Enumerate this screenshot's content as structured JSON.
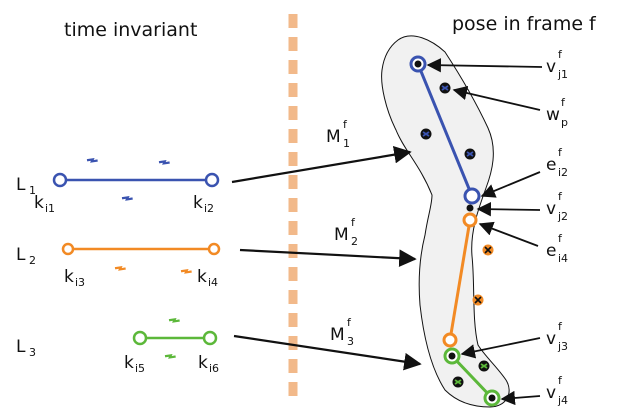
{
  "header": {
    "left": "time invariant",
    "right": "pose in frame f"
  },
  "limbs": [
    {
      "label": "L",
      "label_sub": "1",
      "key_a": "k",
      "key_a_sub": "i1",
      "key_b": "k",
      "key_b_sub": "i2",
      "map": "M",
      "map_sub": "1",
      "map_sup": "f",
      "color": "#3a53b0"
    },
    {
      "label": "L",
      "label_sub": "2",
      "key_a": "k",
      "key_a_sub": "i3",
      "key_b": "k",
      "key_b_sub": "i4",
      "map": "M",
      "map_sub": "2",
      "map_sup": "f",
      "color": "#f28a24"
    },
    {
      "label": "L",
      "label_sub": "3",
      "key_a": "k",
      "key_a_sub": "i5",
      "key_b": "k",
      "key_b_sub": "i6",
      "map": "M",
      "map_sub": "3",
      "map_sup": "f",
      "color": "#5cb83a"
    }
  ],
  "right_labels": {
    "vj1": {
      "base": "v",
      "sub": "j1",
      "sup": "f"
    },
    "wp": {
      "base": "w",
      "sub": "p",
      "sup": "f"
    },
    "ei2": {
      "base": "e",
      "sub": "i2",
      "sup": "f"
    },
    "vj2": {
      "base": "v",
      "sub": "j2",
      "sup": "f"
    },
    "ei4": {
      "base": "e",
      "sub": "i4",
      "sup": "f"
    },
    "vj3": {
      "base": "v",
      "sub": "j3",
      "sup": "f"
    },
    "vj4": {
      "base": "v",
      "sub": "j4",
      "sup": "f"
    }
  },
  "colors": {
    "blue": "#3a53b0",
    "orange": "#f28a24",
    "green": "#5cb83a",
    "divider": "#f2b98a",
    "body_fill": "#f1f1f1",
    "ink": "#111111"
  }
}
